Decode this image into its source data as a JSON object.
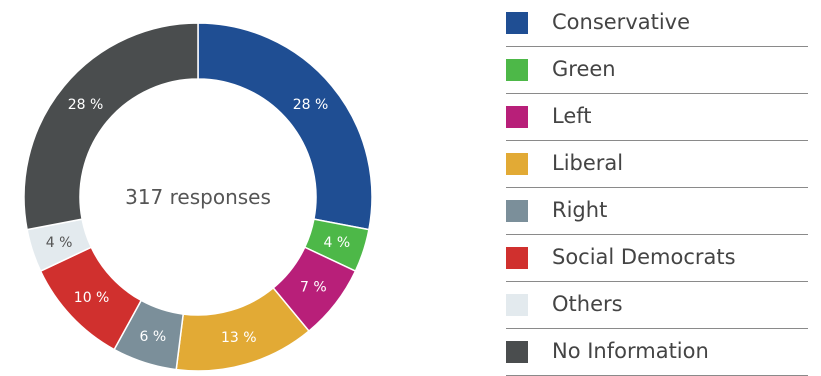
{
  "chart_data": {
    "type": "pie",
    "variant": "donut",
    "center_text": "317 responses",
    "slices": [
      {
        "name": "Conservative",
        "value": 28,
        "label": "28 %",
        "color": "#1f4e93",
        "label_color": "#ffffff"
      },
      {
        "name": "Green",
        "value": 4,
        "label": "4 %",
        "color": "#4db848",
        "label_color": "#ffffff"
      },
      {
        "name": "Left",
        "value": 7,
        "label": "7 %",
        "color": "#b81f79",
        "label_color": "#ffffff"
      },
      {
        "name": "Liberal",
        "value": 13,
        "label": "13 %",
        "color": "#e2aa35",
        "label_color": "#ffffff"
      },
      {
        "name": "Right",
        "value": 6,
        "label": "6 %",
        "color": "#7b8f9a",
        "label_color": "#ffffff"
      },
      {
        "name": "Social Democrats",
        "value": 10,
        "label": "10 %",
        "color": "#d0302e",
        "label_color": "#ffffff"
      },
      {
        "name": "Others",
        "value": 4,
        "label": "4 %",
        "color": "#e3eaee",
        "label_color": "#555555"
      },
      {
        "name": "No Information",
        "value": 28,
        "label": "28 %",
        "color": "#4a4d4e",
        "label_color": "#ffffff"
      }
    ],
    "legend_placement": "right"
  }
}
